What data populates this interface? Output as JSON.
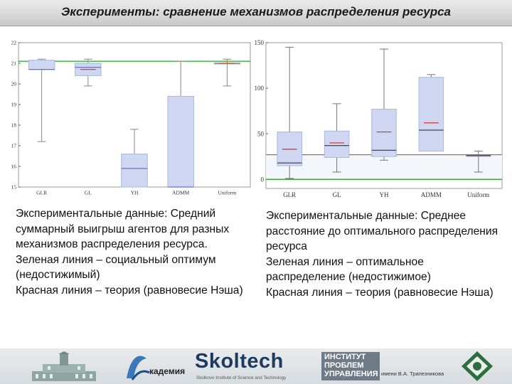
{
  "header": {
    "title": "Эксперименты: сравнение механизмов распределения ресурса"
  },
  "chart_data": [
    {
      "type": "box",
      "categories": [
        "GLR",
        "GL",
        "YH",
        "ADMM",
        "Uniform"
      ],
      "ylim": [
        15,
        22
      ],
      "yticks": [
        15,
        16,
        17,
        18,
        19,
        20,
        21,
        22
      ],
      "series": [
        {
          "values": [
            {
              "whisker_low": 17.2,
              "q1": 20.7,
              "median": 20.7,
              "q3": 21.15,
              "whisker_high": 21.2,
              "theory": null
            },
            {
              "whisker_low": 19.9,
              "q1": 20.4,
              "median": 20.8,
              "q3": 21.0,
              "whisker_high": 21.2,
              "theory": 20.7
            },
            {
              "whisker_low": 15.0,
              "q1": 15.0,
              "median": 15.9,
              "q3": 16.6,
              "whisker_high": 17.8,
              "theory": null
            },
            {
              "whisker_low": 15.0,
              "q1": 15.0,
              "median": 15.0,
              "q3": 19.4,
              "whisker_high": 21.1,
              "theory": null
            },
            {
              "whisker_low": 19.9,
              "q1": 21.0,
              "median": 21.0,
              "q3": 21.0,
              "whisker_high": 21.2,
              "theory": 21.0
            }
          ]
        }
      ],
      "social_optimum": 21.1,
      "grid": false,
      "colors": {
        "box": "#cfd7f2",
        "box_edge": "#aab8e0",
        "whisker": "#888888",
        "median": "#4a5fa0",
        "theory": "#d03030",
        "optimum": "#22aa22"
      }
    },
    {
      "type": "box",
      "categories": [
        "GLR",
        "GL",
        "YH",
        "ADMM",
        "Uniform"
      ],
      "ylim": [
        -10,
        150
      ],
      "yticks": [
        0,
        50,
        100,
        150
      ],
      "series": [
        {
          "values": [
            {
              "whisker_low": 1,
              "q1": 15,
              "median": 18,
              "q3": 52,
              "whisker_high": 145,
              "theory": 33
            },
            {
              "whisker_low": 8,
              "q1": 24,
              "median": 37,
              "q3": 53,
              "whisker_high": 83,
              "theory": 40
            },
            {
              "whisker_low": 21,
              "q1": 25,
              "median": 32,
              "q3": 77,
              "whisker_high": 143,
              "theory": 52
            },
            {
              "whisker_low": 31,
              "q1": 31,
              "median": 54,
              "q3": 112,
              "whisker_high": 115,
              "theory": 62
            },
            {
              "whisker_low": 8,
              "q1": 26,
              "median": 26,
              "q3": 26,
              "whisker_high": 31,
              "theory": null
            }
          ]
        }
      ],
      "theory_level": 27,
      "optimal_level": 0,
      "grid": false,
      "colors": {
        "box": "#cfd7f2",
        "box_edge": "#aab8e0",
        "whisker": "#777777",
        "median": "#222222",
        "theory": "#d03030",
        "optimum": "#22aa22"
      }
    }
  ],
  "descriptions": {
    "left": "Экспериментальные данные: Средний суммарный выигрыш агентов для разных механизмов распределения ресурса.\nЗеленая линия – социальный оптимум (недостижимый)\nКрасная линия – теория (равновесие Нэша)",
    "right": "Экспериментальные данные: Среднее расстояние до оптимального распределения ресурса\nЗеленая линия – оптимальное распределение (недостижимое)\nКрасная линия – теория (равновесие Нэша)"
  },
  "footer": {
    "logo2_text": "кадемия",
    "skoltech_text": "Skoltech",
    "skoltech_sub": "Skolkovo Institute of Science and Technology",
    "ipu_line1": "ИНСТИТУТ",
    "ipu_line2": "ПРОБЛЕМ",
    "ipu_line3": "УПРАВЛЕНИЯ",
    "ipu_sub": "имени В.А. Трапезникова"
  }
}
